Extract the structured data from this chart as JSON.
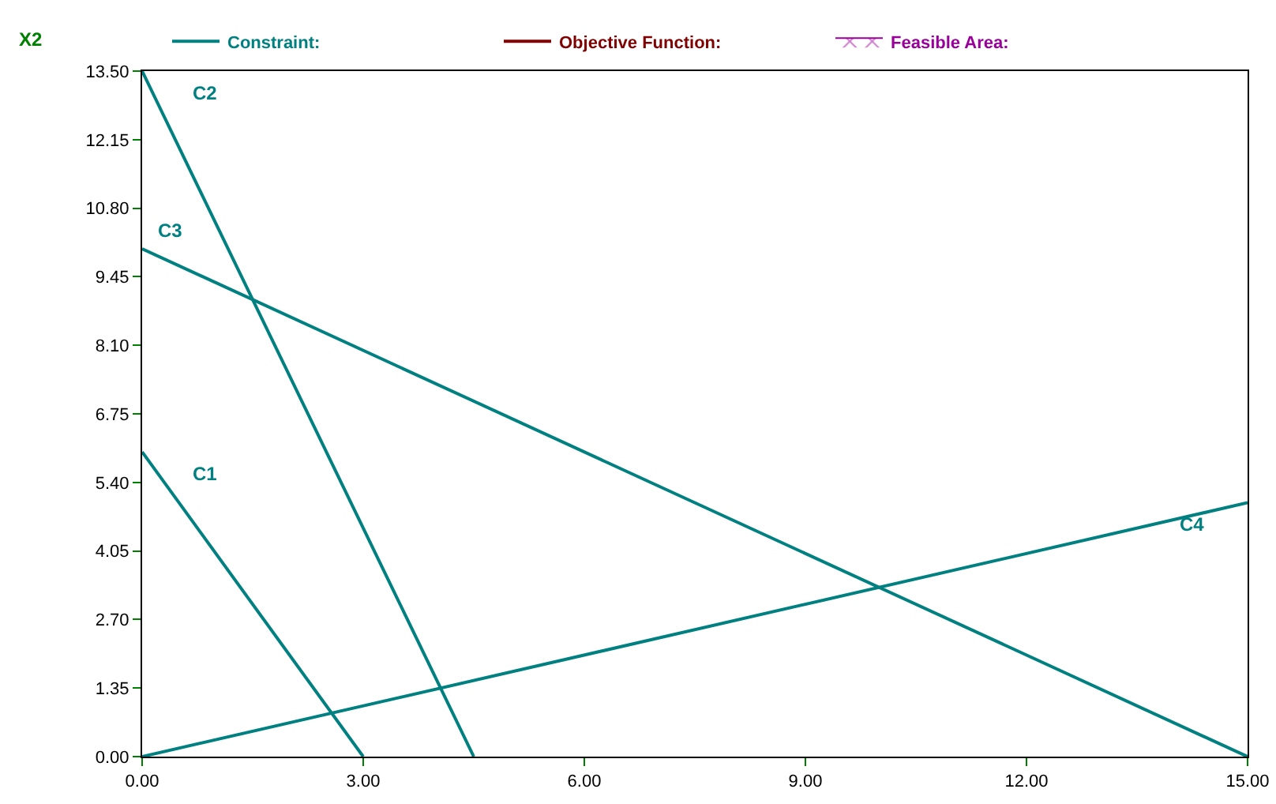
{
  "chart_data": {
    "type": "line",
    "ylabel": "X2",
    "series": [
      {
        "name": "C1",
        "color": "#008080",
        "x": [
          0,
          3
        ],
        "values": [
          6,
          0
        ]
      },
      {
        "name": "C2",
        "color": "#008080",
        "x": [
          0,
          4.5
        ],
        "values": [
          13.5,
          0
        ]
      },
      {
        "name": "C3",
        "color": "#008080",
        "x": [
          0,
          15
        ],
        "values": [
          10,
          0
        ]
      },
      {
        "name": "C4",
        "color": "#008080",
        "x": [
          0,
          15
        ],
        "values": [
          0,
          5
        ]
      },
      {
        "name": "Constraint:",
        "color": "#008080"
      },
      {
        "name": "Objective Function:",
        "color": "#800000"
      },
      {
        "name": "Feasible Area:",
        "type": "area",
        "color": "#990099"
      }
    ],
    "xlim": [
      0,
      15
    ],
    "ylim": [
      0,
      13.5
    ],
    "xticks": [
      {
        "value": 0,
        "label": "0.00"
      },
      {
        "value": 3,
        "label": "3.00"
      },
      {
        "value": 6,
        "label": "6.00"
      },
      {
        "value": 9,
        "label": "9.00"
      },
      {
        "value": 12,
        "label": "12.00"
      },
      {
        "value": 15,
        "label": "15.00"
      }
    ],
    "yticks": [
      {
        "value": 0,
        "label": "0.00"
      },
      {
        "value": 1.35,
        "label": "1.35"
      },
      {
        "value": 2.7,
        "label": "2.70"
      },
      {
        "value": 4.05,
        "label": "4.05"
      },
      {
        "value": 5.4,
        "label": "5.40"
      },
      {
        "value": 6.75,
        "label": "6.75"
      },
      {
        "value": 8.1,
        "label": "8.10"
      },
      {
        "value": 9.45,
        "label": "9.45"
      },
      {
        "value": 10.8,
        "label": "10.80"
      },
      {
        "value": 12.15,
        "label": "12.15"
      },
      {
        "value": 13.5,
        "label": "13.50"
      }
    ],
    "legend": "top",
    "marker": "none",
    "line_style": "solid"
  }
}
